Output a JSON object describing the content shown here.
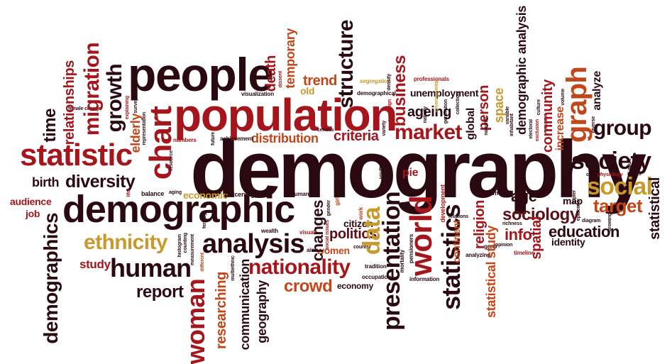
{
  "title": "",
  "colors": {
    "dark": "#2a0a10",
    "maroon": "#5c0f16",
    "red": "#a4161b",
    "orange": "#c2461a",
    "gold": "#c89a2c",
    "background": "#ffffff"
  },
  "words": {
    "demography": "demography",
    "people": "people",
    "population": "population",
    "demographic": "demographic",
    "statistic": "statistic",
    "chart": "chart",
    "analysis": "analysis",
    "human": "human",
    "nationality": "nationality",
    "ethnicity": "ethnicity",
    "diversity": "diversity",
    "market": "market",
    "society": "society",
    "social": "social",
    "group": "group",
    "graph": "graph",
    "world": "world",
    "presentation": "presentation",
    "statistics": "statistics",
    "woman": "woman",
    "demographics": "demographics",
    "report": "report",
    "crowd": "crowd",
    "data": "data",
    "education": "education",
    "target": "target",
    "sociology": "sociology",
    "migration": "migration",
    "growth": "growth",
    "structure": "structure",
    "business": "business",
    "distribution": "distribution",
    "criteria": "criteria",
    "ageing": "ageing",
    "unemployment": "unemployment",
    "temporary": "temporary",
    "trend": "trend",
    "death": "death",
    "old": "old",
    "time": "time",
    "relationships": "relationships",
    "birth": "birth",
    "audience": "audience",
    "job": "job",
    "study": "study",
    "economic": "economic",
    "economy": "economy",
    "communication": "communication",
    "geography": "geography",
    "researching": "researching",
    "changes": "changes",
    "politics": "politics",
    "citizen": "citizen",
    "women": "women",
    "religion": "religion",
    "info": "info",
    "spatial": "spatial",
    "statistical_study": "statistical study",
    "statistical": "statistical",
    "identity": "identity",
    "age": "age",
    "map": "map",
    "community": "community",
    "demographic_analysis": "demographic analysis",
    "analyze": "analyze",
    "increase": "increase",
    "person": "person",
    "space": "space",
    "global": "global",
    "pie": "pie",
    "elderly": "elderly",
    "balance": "balance",
    "percentage": "percentage",
    "humanity": "humanity",
    "continent": "continent",
    "teamwork": "teamwork",
    "visualization": "visualization",
    "demographical": "demographical",
    "professionals": "professionals",
    "segregation": "segregation",
    "achievement": "achievement",
    "census": "census",
    "numbers": "numbers",
    "future": "future",
    "fertility": "fertility",
    "wealth": "wealth",
    "visual": "visual",
    "aim": "aim",
    "country": "country",
    "tradition": "tradition",
    "occupation": "occupation",
    "information": "information",
    "timeline": "timeline",
    "grow": "grow",
    "opinion": "opinion",
    "richness": "richness",
    "relations": "relations",
    "analyzing": "analyzing",
    "career": "career",
    "physiology": "physiology",
    "mass": "mass",
    "diagram": "diagram",
    "inhabitant": "inhabitant",
    "nativity": "nativity",
    "generation": "generation",
    "culture": "culture",
    "masses": "masses",
    "volume": "volume",
    "female": "female",
    "male": "male",
    "life": "life",
    "aging": "aging",
    "resource": "resource",
    "representation": "representation",
    "survey": "survey",
    "explaining": "explaining",
    "environmental": "environmental",
    "density": "density",
    "youth": "youth",
    "child": "child",
    "girl": "girl",
    "gender": "gender",
    "pensioners": "pensioners",
    "mortality": "mortality",
    "work": "work",
    "dissent": "dissent",
    "adult": "adult",
    "diverse": "diverse",
    "growing": "growing",
    "history": "history",
    "national": "national",
    "collection": "collection",
    "brm": "brm",
    "development": "development",
    "tripler": "tripler",
    "variable": "variable",
    "exclusion": "exclusion",
    "electoral": "electoral",
    "variety": "variety",
    "campaign": "campaign",
    "epidemic": "epidemic",
    "multiethnic": "multiethnic",
    "different": "different",
    "counting": "counting",
    "measurement": "measurement",
    "histogram": "histogram",
    "social_issues": "social issues",
    "female_change": "female change"
  }
}
